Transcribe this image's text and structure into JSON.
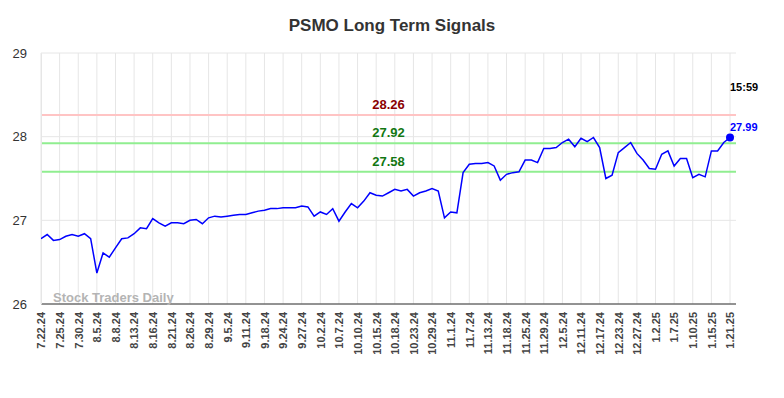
{
  "chart_data": {
    "type": "line",
    "title": "PSMO Long Term Signals",
    "watermark": "Stock Traders Daily",
    "grid": true,
    "ylim": [
      26,
      29
    ],
    "yticks": [
      26,
      27,
      28,
      29
    ],
    "categories": [
      "7.22.24",
      null,
      null,
      "7.25.24",
      null,
      null,
      "7.30.24",
      null,
      null,
      "8.5.24",
      null,
      null,
      "8.8.24",
      null,
      null,
      "8.13.24",
      null,
      null,
      "8.16.24",
      null,
      null,
      "8.21.24",
      null,
      null,
      "8.26.24",
      null,
      null,
      "8.29.24",
      null,
      null,
      "9.5.24",
      null,
      null,
      "9.11.24",
      null,
      null,
      "9.18.24",
      null,
      null,
      "9.24.24",
      null,
      null,
      "9.27.24",
      null,
      null,
      "10.2.24",
      null,
      null,
      "10.7.24",
      null,
      null,
      "10.10.24",
      null,
      null,
      "10.15.24",
      null,
      null,
      "10.18.24",
      null,
      null,
      "10.23.24",
      null,
      null,
      "10.29.24",
      null,
      null,
      "11.1.24",
      null,
      null,
      "11.7.24",
      null,
      null,
      "11.13.24",
      null,
      null,
      "11.18.24",
      null,
      null,
      "11.25.24",
      null,
      null,
      "11.29.24",
      null,
      null,
      "12.5.24",
      null,
      null,
      "12.11.24",
      null,
      null,
      "12.17.24",
      null,
      null,
      "12.23.24",
      null,
      null,
      "12.27.24",
      null,
      null,
      "1.2.25",
      null,
      null,
      "1.7.25",
      null,
      null,
      "1.10.25",
      null,
      null,
      "1.15.25",
      null,
      null,
      "1.21.25"
    ],
    "series": [
      {
        "color": "#0000ff",
        "values": [
          26.78,
          26.83,
          26.76,
          26.77,
          26.81,
          26.83,
          26.81,
          26.84,
          26.78,
          26.37,
          26.61,
          26.56,
          26.67,
          26.78,
          26.79,
          26.84,
          26.91,
          26.9,
          27.02,
          26.97,
          26.93,
          26.97,
          26.97,
          26.96,
          27.0,
          27.01,
          26.96,
          27.03,
          27.05,
          27.04,
          27.05,
          27.06,
          27.07,
          27.07,
          27.09,
          27.11,
          27.12,
          27.14,
          27.14,
          27.15,
          27.15,
          27.15,
          27.17,
          27.16,
          27.05,
          27.1,
          27.07,
          27.14,
          26.99,
          27.1,
          27.2,
          27.15,
          27.23,
          27.33,
          27.3,
          27.29,
          27.33,
          27.37,
          27.35,
          27.37,
          27.29,
          27.33,
          27.35,
          27.38,
          27.35,
          27.03,
          27.1,
          27.09,
          27.57,
          27.67,
          27.68,
          27.68,
          27.69,
          27.65,
          27.48,
          27.55,
          27.57,
          27.58,
          27.72,
          27.72,
          27.69,
          27.86,
          27.86,
          27.87,
          27.93,
          27.97,
          27.88,
          27.98,
          27.94,
          27.99,
          27.87,
          27.5,
          27.54,
          27.81,
          27.87,
          27.93,
          27.8,
          27.72,
          27.62,
          27.61,
          27.79,
          27.83,
          27.65,
          27.74,
          27.74,
          27.51,
          27.55,
          27.52,
          27.83,
          27.83,
          27.93,
          27.99
        ]
      }
    ],
    "annotations": [
      {
        "y": 28.26,
        "color": "#ffc4c4"
      },
      {
        "y": 27.92,
        "color": "#90ee90"
      },
      {
        "y": 27.58,
        "color": "#90ee90"
      }
    ],
    "end_label": {
      "time": "15:59",
      "value": 27.99
    }
  }
}
